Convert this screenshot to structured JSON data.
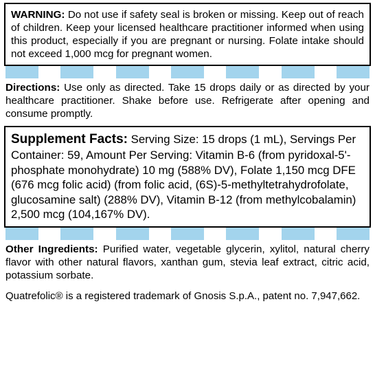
{
  "styling": {
    "stripe_color": "#a3d4ed",
    "border_color": "#000000",
    "bg_color": "#ffffff",
    "text_color": "#000000",
    "warning_fontsize": 15.2,
    "directions_fontsize": 15.2,
    "facts_fontsize": 16.8,
    "facts_heading_fontsize": 19,
    "other_fontsize": 15.2,
    "trademark_fontsize": 15,
    "stripe_count": 7,
    "stripe_width": 48,
    "stripe_height": 18
  },
  "warning": {
    "label": "WARNING:",
    "text": "Do not use if safety seal is broken or missing. Keep out of reach of children. Keep your licensed healthcare practitioner informed when using this product, especially if you are pregnant or nursing. Folate intake should not exceed 1,000 mcg for pregnant women."
  },
  "directions": {
    "label": "Directions:",
    "text": "Use only as directed. Take 15 drops daily or as directed by your healthcare practitioner. Shake before use. Refrigerate after opening and consume promptly."
  },
  "facts": {
    "label": "Supplement Facts:",
    "text": "Serving Size: 15 drops (1 mL), Servings Per Container: 59, Amount Per Serving: Vitamin B-6 (from pyridoxal-5'-phosphate monohydrate) 10 mg (588% DV), Folate 1,150 mcg DFE (676 mcg folic acid) (from folic acid, (6S)-5-methyltetrahydrofolate, glucosamine salt) (288% DV), Vitamin B-12 (from methylcobalamin) 2,500 mcg (104,167% DV)."
  },
  "other": {
    "label": "Other Ingredients:",
    "text": "Purified water, vegetable glycerin, xylitol, natural cherry flavor with other natural flavors, xanthan gum, stevia leaf extract, citric acid, potassium sorbate."
  },
  "trademark": {
    "text": "Quatrefolic® is a registered trademark of Gnosis S.p.A., patent no. 7,947,662."
  }
}
